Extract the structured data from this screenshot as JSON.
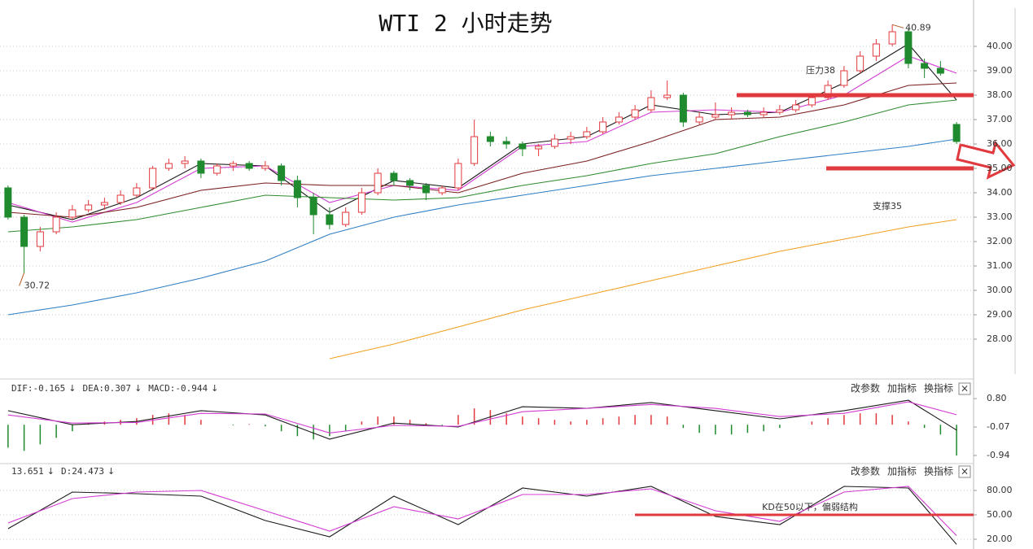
{
  "chart_data": [
    {
      "type": "candlestick",
      "title": "WTI 2 小时走势",
      "up_color": "#e0393e",
      "down_color": "#1f8a2e",
      "extreme_color": "#b5561f",
      "candles": [
        [
          34.2,
          34.3,
          32.9,
          33.0
        ],
        [
          33.0,
          33.1,
          30.72,
          31.8
        ],
        [
          31.8,
          32.6,
          31.6,
          32.4
        ],
        [
          32.4,
          33.2,
          32.3,
          33.0
        ],
        [
          33.0,
          33.5,
          32.9,
          33.3
        ],
        [
          33.3,
          33.7,
          33.2,
          33.5
        ],
        [
          33.5,
          33.8,
          33.3,
          33.6
        ],
        [
          33.6,
          34.1,
          33.5,
          33.9
        ],
        [
          33.9,
          34.4,
          33.8,
          34.2
        ],
        [
          34.2,
          35.1,
          34.1,
          35.0
        ],
        [
          35.0,
          35.4,
          34.9,
          35.2
        ],
        [
          35.2,
          35.5,
          35.0,
          35.3
        ],
        [
          35.3,
          35.4,
          34.6,
          34.8
        ],
        [
          34.8,
          35.2,
          34.7,
          35.1
        ],
        [
          35.1,
          35.3,
          34.9,
          35.2
        ],
        [
          35.2,
          35.3,
          34.9,
          35.0
        ],
        [
          35.0,
          35.3,
          34.9,
          35.1
        ],
        [
          35.1,
          35.2,
          34.3,
          34.5
        ],
        [
          34.5,
          34.7,
          33.4,
          33.8
        ],
        [
          33.8,
          34.0,
          32.3,
          33.1
        ],
        [
          33.1,
          33.4,
          32.5,
          32.7
        ],
        [
          32.7,
          33.4,
          32.6,
          33.2
        ],
        [
          33.2,
          34.2,
          33.1,
          34.0
        ],
        [
          34.0,
          35.0,
          33.9,
          34.8
        ],
        [
          34.8,
          34.9,
          34.3,
          34.5
        ],
        [
          34.5,
          34.6,
          34.1,
          34.3
        ],
        [
          34.3,
          34.4,
          33.7,
          34.0
        ],
        [
          34.0,
          34.3,
          33.9,
          34.2
        ],
        [
          34.2,
          35.4,
          34.1,
          35.2
        ],
        [
          35.2,
          37.0,
          35.1,
          36.3
        ],
        [
          36.3,
          36.5,
          35.9,
          36.1
        ],
        [
          36.1,
          36.3,
          35.8,
          36.0
        ],
        [
          36.0,
          36.1,
          35.5,
          35.8
        ],
        [
          35.8,
          36.0,
          35.5,
          35.9
        ],
        [
          35.9,
          36.4,
          35.8,
          36.2
        ],
        [
          36.2,
          36.5,
          36.0,
          36.3
        ],
        [
          36.3,
          36.7,
          36.2,
          36.5
        ],
        [
          36.5,
          37.1,
          36.4,
          36.9
        ],
        [
          36.9,
          37.3,
          36.8,
          37.1
        ],
        [
          37.1,
          37.6,
          37.0,
          37.4
        ],
        [
          37.4,
          38.2,
          37.3,
          37.9
        ],
        [
          37.9,
          38.6,
          37.8,
          38.0
        ],
        [
          38.0,
          38.1,
          36.7,
          36.9
        ],
        [
          36.9,
          37.3,
          36.8,
          37.1
        ],
        [
          37.1,
          37.7,
          37.0,
          37.2
        ],
        [
          37.2,
          37.5,
          37.0,
          37.3
        ],
        [
          37.3,
          37.4,
          37.1,
          37.2
        ],
        [
          37.2,
          37.5,
          37.1,
          37.3
        ],
        [
          37.3,
          37.6,
          37.2,
          37.4
        ],
        [
          37.4,
          37.8,
          37.3,
          37.6
        ],
        [
          37.6,
          38.0,
          37.5,
          37.9
        ],
        [
          37.9,
          38.6,
          37.8,
          38.4
        ],
        [
          38.4,
          39.2,
          38.3,
          39.0
        ],
        [
          39.0,
          39.8,
          38.9,
          39.6
        ],
        [
          39.6,
          40.3,
          39.4,
          40.1
        ],
        [
          40.1,
          40.89,
          40.0,
          40.6
        ],
        [
          40.6,
          40.7,
          39.1,
          39.3
        ],
        [
          39.3,
          39.5,
          38.7,
          39.1
        ],
        [
          39.1,
          39.4,
          38.8,
          38.9
        ],
        [
          36.8,
          36.9,
          36.0,
          36.1
        ]
      ],
      "x": [
        0,
        4,
        8,
        12,
        16,
        20,
        24,
        28,
        32,
        36,
        40,
        44,
        48,
        52,
        56,
        59
      ],
      "series": [
        {
          "color": "#1a1a1a",
          "values": [
            33.5,
            32.9,
            33.8,
            35.2,
            35.1,
            33.2,
            34.5,
            34.2,
            36.0,
            36.3,
            37.6,
            37.2,
            37.3,
            38.5,
            40.1,
            37.8
          ]
        },
        {
          "color": "#d23cd2",
          "values": [
            33.6,
            32.8,
            33.6,
            35.0,
            35.1,
            33.6,
            34.3,
            34.1,
            35.9,
            36.1,
            37.3,
            37.4,
            37.3,
            38.0,
            39.6,
            38.9
          ]
        },
        {
          "color": "#7a1f1f",
          "values": [
            33.2,
            33.0,
            33.4,
            34.1,
            34.4,
            34.3,
            34.3,
            34.0,
            34.8,
            35.3,
            36.1,
            37.0,
            37.1,
            37.6,
            38.4,
            38.5
          ]
        },
        {
          "color": "#2e8b2e",
          "values": [
            32.4,
            32.6,
            32.9,
            33.4,
            33.9,
            33.8,
            33.7,
            33.8,
            34.3,
            34.7,
            35.2,
            35.6,
            36.3,
            36.9,
            37.6,
            37.8
          ]
        },
        {
          "color": "#2f7fc4",
          "values": [
            29.0,
            29.4,
            29.9,
            30.5,
            31.2,
            32.3,
            33.0,
            33.5,
            33.9,
            34.3,
            34.7,
            35.0,
            35.3,
            35.6,
            35.9,
            36.2
          ]
        },
        {
          "color": "#f0a020",
          "values": [
            null,
            null,
            null,
            null,
            null,
            27.2,
            27.8,
            28.5,
            29.2,
            29.8,
            30.4,
            31.0,
            31.6,
            32.1,
            32.6,
            32.9
          ]
        }
      ],
      "ylim": [
        26.4,
        41.9
      ],
      "yticks": [
        {
          "value": 28,
          "label": "28.00"
        },
        {
          "value": 29,
          "label": "29.00"
        },
        {
          "value": 30,
          "label": "30.00"
        },
        {
          "value": 31,
          "label": "31.00"
        },
        {
          "value": 32,
          "label": "32.00"
        },
        {
          "value": 33,
          "label": "33.00"
        },
        {
          "value": 34,
          "label": "34.00"
        },
        {
          "value": 35,
          "label": "35.00"
        },
        {
          "value": 36,
          "label": "36.00"
        },
        {
          "value": 37,
          "label": "37.00"
        },
        {
          "value": 38,
          "label": "38.00"
        },
        {
          "value": 39,
          "label": "39.00"
        },
        {
          "value": 40,
          "label": "40.00"
        }
      ],
      "grid": true,
      "annotations": [
        {
          "text": "压力38",
          "value": 38,
          "color": "#e0393e"
        },
        {
          "text": "支撑35",
          "value": 35,
          "color": "#e0393e"
        }
      ]
    },
    {
      "type": "macd",
      "x": [
        0,
        4,
        8,
        12,
        16,
        20,
        24,
        28,
        32,
        36,
        40,
        44,
        48,
        52,
        56,
        59
      ],
      "series": [
        {
          "name": "DIF",
          "label": "DIF:-0.165",
          "color": "#1a1a1a",
          "values": [
            0.43,
            0.0,
            0.1,
            0.43,
            0.3,
            -0.44,
            0.05,
            -0.07,
            0.55,
            0.5,
            0.68,
            0.43,
            0.18,
            0.43,
            0.75,
            -0.165
          ]
        },
        {
          "name": "DEA",
          "label": "DEA:0.307",
          "color": "#d23cd2",
          "values": [
            0.3,
            0.05,
            0.07,
            0.35,
            0.33,
            -0.25,
            -0.02,
            -0.05,
            0.4,
            0.5,
            0.62,
            0.5,
            0.25,
            0.35,
            0.7,
            0.307
          ]
        }
      ],
      "histogram": {
        "name": "MACD",
        "label": "MACD:-0.944",
        "up_color": "#e0393e",
        "down_color": "#1f8a2e",
        "values": [
          -0.7,
          -0.8,
          -0.6,
          -0.4,
          -0.2,
          0.05,
          0.1,
          0.15,
          0.2,
          0.3,
          0.35,
          0.3,
          0.15,
          0.0,
          -0.02,
          0.02,
          -0.05,
          -0.2,
          -0.35,
          -0.45,
          -0.35,
          -0.2,
          0.1,
          0.25,
          0.25,
          0.15,
          0.05,
          -0.05,
          0.3,
          0.5,
          0.45,
          0.35,
          0.25,
          0.2,
          0.15,
          0.1,
          0.15,
          0.2,
          0.25,
          0.3,
          0.3,
          0.25,
          -0.1,
          -0.25,
          -0.3,
          -0.3,
          -0.25,
          -0.2,
          -0.1,
          0.0,
          0.1,
          0.2,
          0.3,
          0.35,
          0.35,
          0.3,
          0.1,
          -0.1,
          -0.3,
          -0.944
        ]
      },
      "trend": "↓",
      "ylim": [
        -1.14,
        1.35
      ],
      "yticks": [
        {
          "value": 0.8,
          "label": "0.80"
        },
        {
          "value": -0.07,
          "label": "-0.07"
        },
        {
          "value": -0.94,
          "label": "-0.94"
        }
      ],
      "grid": false,
      "toolbar": [
        "改参数",
        "加指标",
        "换指标",
        "×"
      ]
    },
    {
      "type": "kd",
      "x": [
        0,
        4,
        8,
        12,
        16,
        20,
        24,
        28,
        32,
        36,
        40,
        44,
        48,
        52,
        56,
        59
      ],
      "series": [
        {
          "name": "K",
          "label": "13.651",
          "color": "#1a1a1a",
          "values": [
            33,
            78,
            76,
            73,
            43,
            23,
            73,
            38,
            83,
            73,
            85,
            48,
            38,
            85,
            83,
            13.651
          ]
        },
        {
          "name": "D",
          "label": "D:24.473",
          "color": "#d23cd2",
          "values": [
            40,
            70,
            78,
            80,
            55,
            30,
            60,
            45,
            75,
            75,
            82,
            55,
            42,
            78,
            85,
            24.473
          ]
        }
      ],
      "trend": "↓",
      "ylim": [
        8,
        111
      ],
      "yticks": [
        {
          "value": 80,
          "label": "80.00"
        },
        {
          "value": 50,
          "label": "50.00"
        },
        {
          "value": 20,
          "label": "20.00"
        }
      ],
      "grid": true,
      "annotations": [
        {
          "text": "KD在50以下，偏弱结构",
          "value": 50,
          "color": "#e0393e"
        }
      ],
      "toolbar": [
        "改参数",
        "加指标",
        "换指标",
        "×"
      ]
    }
  ]
}
